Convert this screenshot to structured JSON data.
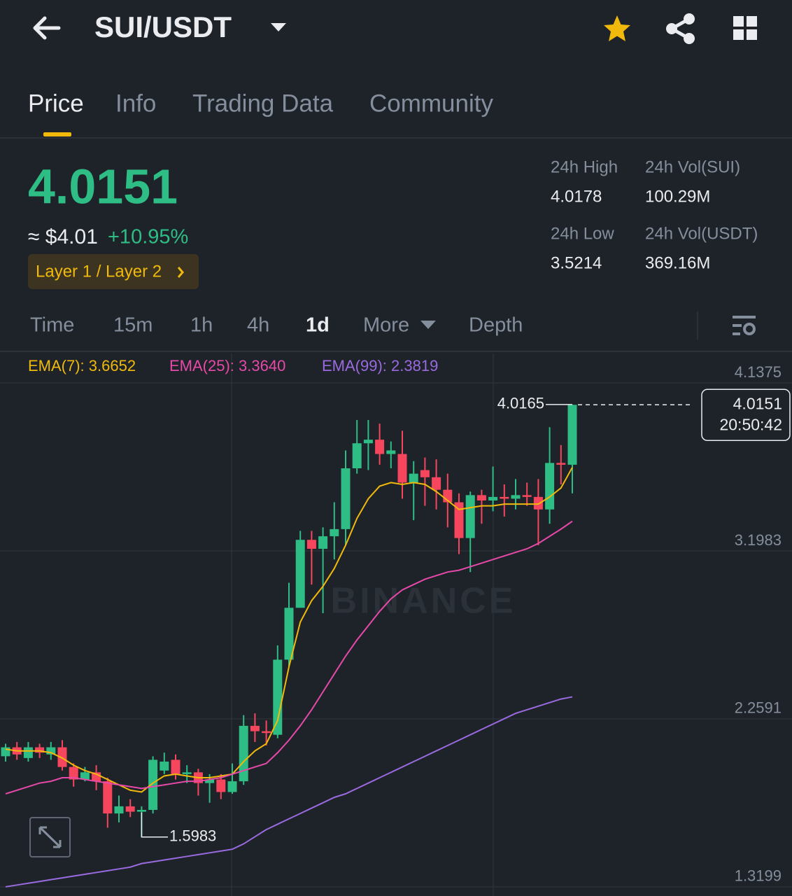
{
  "header": {
    "pair": "SUI/USDT"
  },
  "tabs": [
    "Price",
    "Info",
    "Trading Data",
    "Community"
  ],
  "ticker": {
    "price": "4.0151",
    "fiat": "≈ $4.01",
    "change": "+10.95%",
    "tag": "Layer 1 / Layer 2",
    "stats": [
      {
        "label": "24h High",
        "value": "4.0178"
      },
      {
        "label": "24h Vol(SUI)",
        "value": "100.29M"
      },
      {
        "label": "24h Low",
        "value": "3.5214"
      },
      {
        "label": "24h Vol(USDT)",
        "value": "369.16M"
      }
    ]
  },
  "intervals": [
    "Time",
    "15m",
    "1h",
    "4h",
    "1d",
    "More",
    "Depth"
  ],
  "chart_data": {
    "type": "candlestick",
    "watermark": "BINANCE",
    "countdown": "20:50:42",
    "up_color": "#2ebd85",
    "down_color": "#f6465d",
    "ylim": [
      1.2686,
      4.3019
    ],
    "yticks": [
      1.3199,
      2.2591,
      3.1983,
      4.1375
    ],
    "grid": true,
    "candles": [
      {
        "open": 2.05,
        "high": 2.12,
        "low": 2.02,
        "close": 2.1
      },
      {
        "open": 2.1,
        "high": 2.13,
        "low": 2.03,
        "close": 2.06
      },
      {
        "open": 2.04,
        "high": 2.13,
        "low": 2.02,
        "close": 2.1
      },
      {
        "open": 2.1,
        "high": 2.12,
        "low": 2.04,
        "close": 2.07
      },
      {
        "open": 2.06,
        "high": 2.13,
        "low": 2.03,
        "close": 2.1
      },
      {
        "open": 2.1,
        "high": 2.14,
        "low": 1.97,
        "close": 1.99
      },
      {
        "open": 1.99,
        "high": 2.01,
        "low": 1.88,
        "close": 1.92
      },
      {
        "open": 1.92,
        "high": 1.99,
        "low": 1.91,
        "close": 1.96
      },
      {
        "open": 1.96,
        "high": 2.0,
        "low": 1.86,
        "close": 1.91
      },
      {
        "open": 1.91,
        "high": 1.93,
        "low": 1.65,
        "close": 1.73
      },
      {
        "open": 1.73,
        "high": 1.83,
        "low": 1.68,
        "close": 1.77
      },
      {
        "open": 1.77,
        "high": 1.81,
        "low": 1.71,
        "close": 1.74
      },
      {
        "open": 1.74,
        "high": 1.77,
        "low": 1.5983,
        "close": 1.75
      },
      {
        "open": 1.75,
        "high": 2.05,
        "low": 1.73,
        "close": 2.03
      },
      {
        "open": 1.97,
        "high": 2.07,
        "low": 1.95,
        "close": 2.02
      },
      {
        "open": 2.03,
        "high": 2.06,
        "low": 1.92,
        "close": 1.95
      },
      {
        "open": 1.95,
        "high": 2.0,
        "low": 1.9,
        "close": 1.96
      },
      {
        "open": 1.96,
        "high": 1.98,
        "low": 1.83,
        "close": 1.9
      },
      {
        "open": 1.9,
        "high": 1.95,
        "low": 1.79,
        "close": 1.92
      },
      {
        "open": 1.92,
        "high": 1.95,
        "low": 1.81,
        "close": 1.85
      },
      {
        "open": 1.85,
        "high": 2.01,
        "low": 1.84,
        "close": 1.91
      },
      {
        "open": 1.91,
        "high": 2.28,
        "low": 1.89,
        "close": 2.22
      },
      {
        "open": 2.22,
        "high": 2.29,
        "low": 2.13,
        "close": 2.19
      },
      {
        "open": 2.19,
        "high": 2.25,
        "low": 2.11,
        "close": 2.18
      },
      {
        "open": 2.17,
        "high": 2.67,
        "low": 2.15,
        "close": 2.59
      },
      {
        "open": 2.59,
        "high": 3.02,
        "low": 2.55,
        "close": 2.88
      },
      {
        "open": 2.88,
        "high": 3.31,
        "low": 2.88,
        "close": 3.26
      },
      {
        "open": 3.26,
        "high": 3.31,
        "low": 3.01,
        "close": 3.21
      },
      {
        "open": 3.21,
        "high": 3.33,
        "low": 2.85,
        "close": 3.28
      },
      {
        "open": 3.28,
        "high": 3.47,
        "low": 3.15,
        "close": 3.32
      },
      {
        "open": 3.32,
        "high": 3.76,
        "low": 3.23,
        "close": 3.66
      },
      {
        "open": 3.66,
        "high": 3.93,
        "low": 3.63,
        "close": 3.8
      },
      {
        "open": 3.8,
        "high": 3.93,
        "low": 3.65,
        "close": 3.82
      },
      {
        "open": 3.82,
        "high": 3.91,
        "low": 3.68,
        "close": 3.74
      },
      {
        "open": 3.74,
        "high": 3.81,
        "low": 3.66,
        "close": 3.76
      },
      {
        "open": 3.74,
        "high": 3.87,
        "low": 3.49,
        "close": 3.58
      },
      {
        "open": 3.58,
        "high": 3.7,
        "low": 3.37,
        "close": 3.63
      },
      {
        "open": 3.65,
        "high": 3.72,
        "low": 3.45,
        "close": 3.61
      },
      {
        "open": 3.61,
        "high": 3.71,
        "low": 3.43,
        "close": 3.54
      },
      {
        "open": 3.54,
        "high": 3.63,
        "low": 3.33,
        "close": 3.47
      },
      {
        "open": 3.47,
        "high": 3.52,
        "low": 3.18,
        "close": 3.27
      },
      {
        "open": 3.27,
        "high": 3.53,
        "low": 3.08,
        "close": 3.51
      },
      {
        "open": 3.51,
        "high": 3.54,
        "low": 3.35,
        "close": 3.48
      },
      {
        "open": 3.48,
        "high": 3.67,
        "low": 3.42,
        "close": 3.5
      },
      {
        "open": 3.5,
        "high": 3.57,
        "low": 3.39,
        "close": 3.49
      },
      {
        "open": 3.49,
        "high": 3.6,
        "low": 3.43,
        "close": 3.51
      },
      {
        "open": 3.51,
        "high": 3.58,
        "low": 3.45,
        "close": 3.5
      },
      {
        "open": 3.5,
        "high": 3.6,
        "low": 3.23,
        "close": 3.43
      },
      {
        "open": 3.43,
        "high": 3.89,
        "low": 3.35,
        "close": 3.69
      },
      {
        "open": 3.69,
        "high": 3.79,
        "low": 3.57,
        "close": 3.68
      },
      {
        "open": 3.68,
        "high": 4.0165,
        "low": 3.52,
        "close": 4.0151
      }
    ],
    "series": [
      {
        "label": "EMA(7): 3.6652",
        "color": "#f0b90b",
        "values": [
          2.09,
          2.08,
          2.08,
          2.08,
          2.07,
          2.04,
          2.0,
          1.97,
          1.95,
          1.92,
          1.89,
          1.86,
          1.85,
          1.9,
          1.94,
          1.95,
          1.94,
          1.93,
          1.93,
          1.94,
          1.95,
          2.02,
          2.08,
          2.12,
          2.25,
          2.55,
          2.8,
          2.92,
          3.0,
          3.1,
          3.23,
          3.38,
          3.49,
          3.56,
          3.58,
          3.57,
          3.58,
          3.57,
          3.53,
          3.48,
          3.43,
          3.44,
          3.45,
          3.45,
          3.46,
          3.46,
          3.46,
          3.46,
          3.5,
          3.55,
          3.6652
        ]
      },
      {
        "label": "EMA(25): 3.3640",
        "color": "#e649a8",
        "values": [
          1.84,
          1.86,
          1.88,
          1.9,
          1.91,
          1.93,
          1.93,
          1.92,
          1.91,
          1.9,
          1.89,
          1.88,
          1.87,
          1.88,
          1.89,
          1.9,
          1.91,
          1.91,
          1.92,
          1.93,
          1.95,
          1.97,
          1.99,
          2.01,
          2.07,
          2.14,
          2.22,
          2.31,
          2.41,
          2.51,
          2.61,
          2.7,
          2.78,
          2.86,
          2.93,
          2.98,
          3.01,
          3.04,
          3.06,
          3.08,
          3.09,
          3.11,
          3.13,
          3.15,
          3.17,
          3.19,
          3.21,
          3.24,
          3.28,
          3.32,
          3.364
        ]
      },
      {
        "label": "EMA(99): 2.3819",
        "color": "#9a6ae0",
        "values": [
          1.32,
          1.33,
          1.34,
          1.35,
          1.36,
          1.37,
          1.38,
          1.39,
          1.4,
          1.41,
          1.42,
          1.43,
          1.45,
          1.46,
          1.47,
          1.48,
          1.49,
          1.5,
          1.51,
          1.52,
          1.53,
          1.56,
          1.6,
          1.64,
          1.67,
          1.7,
          1.73,
          1.76,
          1.79,
          1.82,
          1.84,
          1.87,
          1.9,
          1.93,
          1.96,
          1.99,
          2.02,
          2.05,
          2.08,
          2.11,
          2.14,
          2.17,
          2.2,
          2.23,
          2.26,
          2.29,
          2.31,
          2.33,
          2.35,
          2.37,
          2.3819
        ]
      }
    ]
  }
}
